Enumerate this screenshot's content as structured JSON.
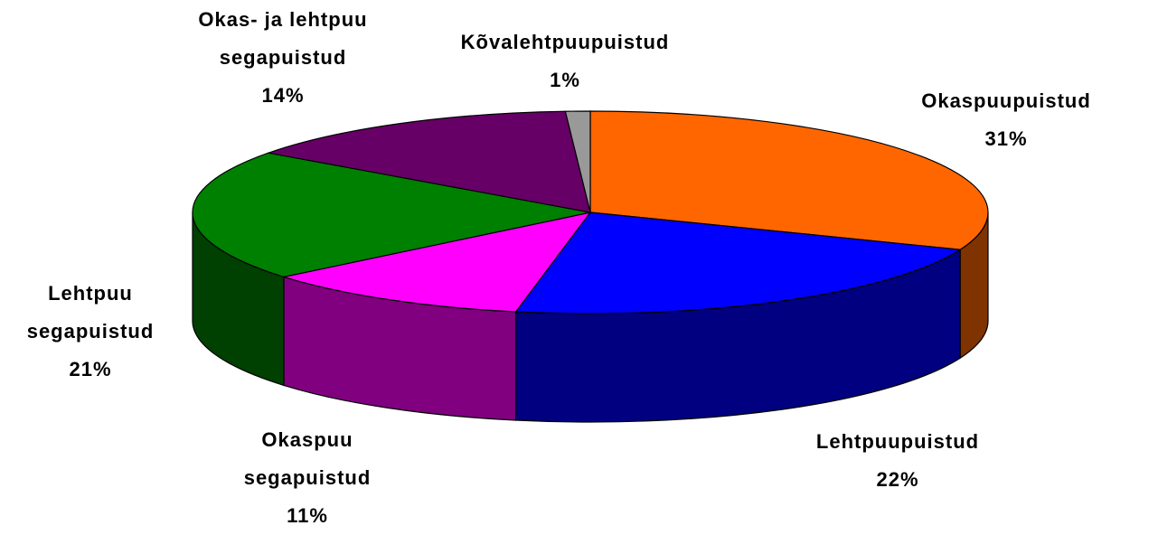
{
  "chart_data": {
    "type": "pie3d",
    "categories": [
      "Okaspuupuistud",
      "Lehtpuupuistud",
      "Okaspuu segapuistud",
      "Lehtpuu segapuistud",
      "Okas- ja lehtpuu segapuistud",
      "Kõvalehtpuupuistud"
    ],
    "values": [
      31,
      22,
      11,
      21,
      14,
      1
    ],
    "value_labels": [
      "31%",
      "22%",
      "11%",
      "21%",
      "14%",
      "1%"
    ],
    "colors": [
      "#ff6600",
      "#0000ff",
      "#ff00ff",
      "#008000",
      "#660066",
      "#999999"
    ],
    "side_colors": [
      "#7f3300",
      "#000080",
      "#800080",
      "#004000",
      "#330033",
      "#4d4d4d"
    ]
  }
}
